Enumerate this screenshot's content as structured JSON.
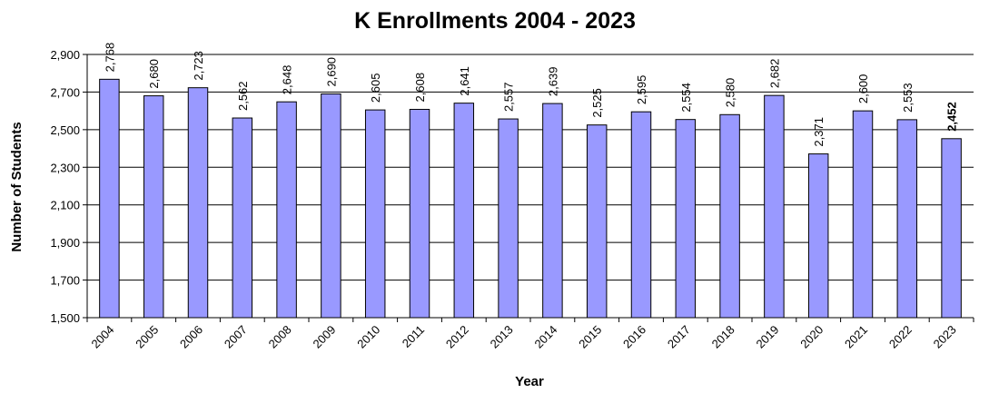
{
  "chart_data": {
    "type": "bar",
    "title": "K Enrollments 2004 - 2023",
    "xlabel": "Year",
    "ylabel": "Number of Students",
    "categories": [
      "2004",
      "2005",
      "2006",
      "2007",
      "2008",
      "2009",
      "2010",
      "2011",
      "2012",
      "2013",
      "2014",
      "2015",
      "2016",
      "2017",
      "2018",
      "2019",
      "2020",
      "2021",
      "2022",
      "2023"
    ],
    "values": [
      2768,
      2680,
      2723,
      2562,
      2648,
      2690,
      2605,
      2608,
      2641,
      2557,
      2639,
      2525,
      2595,
      2554,
      2580,
      2682,
      2371,
      2600,
      2553,
      2452
    ],
    "data_labels": [
      "2,768",
      "2,680",
      "2,723",
      "2,562",
      "2,648",
      "2,690",
      "2,605",
      "2,608",
      "2,641",
      "2,557",
      "2,639",
      "2,525",
      "2,595",
      "2,554",
      "2,580",
      "2,682",
      "2,371",
      "2,600",
      "2,553",
      "2,452"
    ],
    "bold_label_index": 19,
    "ylim": [
      1500,
      2900
    ],
    "yticks": [
      1500,
      1700,
      1900,
      2100,
      2300,
      2500,
      2700,
      2900
    ],
    "ytick_labels": [
      "1,500",
      "1,700",
      "1,900",
      "2,100",
      "2,300",
      "2,500",
      "2,700",
      "2,900"
    ],
    "grid": true,
    "legend": "none",
    "colors": {
      "bar": "#9999FF",
      "bar_stroke": "#000000"
    }
  }
}
